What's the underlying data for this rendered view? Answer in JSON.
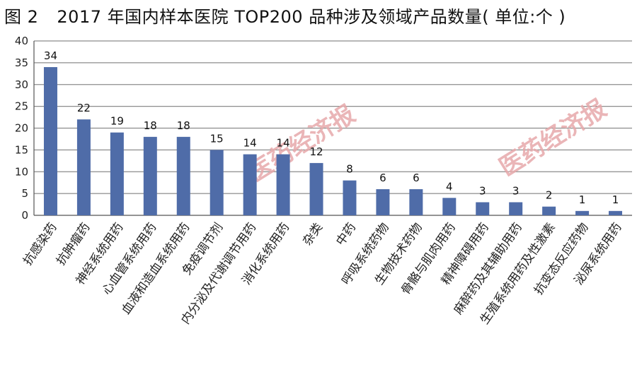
{
  "figure": {
    "number": "图 2",
    "title": "2017 年国内样本医院 TOP200 品种涉及领域产品数量( 单位:个 )"
  },
  "watermark": "医药经济报",
  "chart_data": {
    "type": "bar",
    "categories": [
      "抗感染药",
      "抗肿瘤药",
      "神经系统用药",
      "心血管系统用药",
      "血液和造血系统用药",
      "免疫调节剂",
      "内分泌及代谢调节用药",
      "消化系统用药",
      "杂类",
      "中药",
      "呼吸系统药物",
      "生物技术药物",
      "骨骼与肌肉用药",
      "精神障碍用药",
      "麻醉药及其辅助用药",
      "生殖系统用药及性激素",
      "抗变态反应药物",
      "泌尿系统用药"
    ],
    "values": [
      34,
      22,
      19,
      18,
      18,
      15,
      14,
      14,
      12,
      8,
      6,
      6,
      4,
      3,
      3,
      2,
      1,
      1
    ],
    "yticks": [
      0,
      5,
      10,
      15,
      20,
      25,
      30,
      35,
      40
    ],
    "ylim": [
      0,
      40
    ],
    "grid": true,
    "legend": "none",
    "bar_color": "#4f6ca8",
    "grid_color": "#8c8c8c",
    "xlabel": "",
    "ylabel": ""
  }
}
